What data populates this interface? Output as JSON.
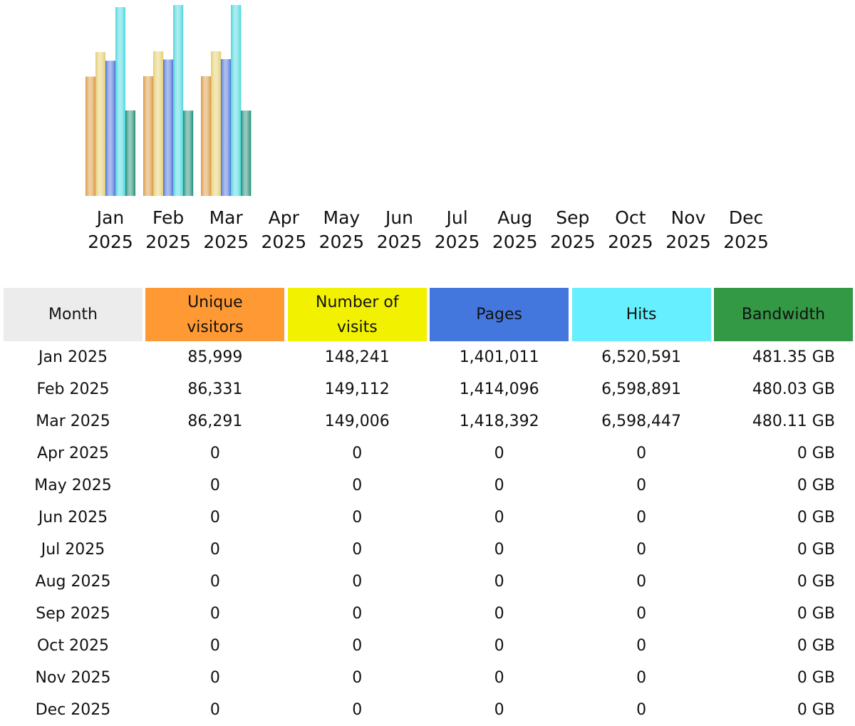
{
  "chart_data": {
    "type": "bar",
    "month_header": "Month",
    "categories": [
      "Jan 2025",
      "Feb 2025",
      "Mar 2025",
      "Apr 2025",
      "May 2025",
      "Jun 2025",
      "Jul 2025",
      "Aug 2025",
      "Sep 2025",
      "Oct 2025",
      "Nov 2025",
      "Dec 2025"
    ],
    "series": [
      {
        "name": "Unique visitors",
        "color": "#d9953a",
        "header_color": "#ff9933",
        "values": [
          85999,
          86331,
          86291,
          0,
          0,
          0,
          0,
          0,
          0,
          0,
          0,
          0
        ],
        "value_labels": [
          "85,999",
          "86,331",
          "86,291",
          "0",
          "0",
          "0",
          "0",
          "0",
          "0",
          "0",
          "0",
          "0"
        ]
      },
      {
        "name": "Number of visits",
        "color": "#e2cc6a",
        "header_color": "#f2f200",
        "values": [
          148241,
          149112,
          149006,
          0,
          0,
          0,
          0,
          0,
          0,
          0,
          0,
          0
        ],
        "value_labels": [
          "148,241",
          "149,112",
          "149,006",
          "0",
          "0",
          "0",
          "0",
          "0",
          "0",
          "0",
          "0",
          "0"
        ]
      },
      {
        "name": "Pages",
        "color": "#4a6fd8",
        "header_color": "#4477dd",
        "values": [
          1401011,
          1414096,
          1418392,
          0,
          0,
          0,
          0,
          0,
          0,
          0,
          0,
          0
        ],
        "value_labels": [
          "1,401,011",
          "1,414,096",
          "1,418,392",
          "0",
          "0",
          "0",
          "0",
          "0",
          "0",
          "0",
          "0",
          "0"
        ]
      },
      {
        "name": "Hits",
        "color": "#45d6de",
        "header_color": "#66f0ff",
        "values": [
          6520591,
          6598891,
          6598447,
          0,
          0,
          0,
          0,
          0,
          0,
          0,
          0,
          0
        ],
        "value_labels": [
          "6,520,591",
          "6,598,891",
          "6,598,447",
          "0",
          "0",
          "0",
          "0",
          "0",
          "0",
          "0",
          "0",
          "0"
        ]
      },
      {
        "name": "Bandwidth",
        "color": "#178a70",
        "header_color": "#339944",
        "values": [
          481.35,
          480.03,
          480.11,
          0,
          0,
          0,
          0,
          0,
          0,
          0,
          0,
          0
        ],
        "value_labels": [
          "481.35 GB",
          "480.03 GB",
          "480.11 GB",
          "0 GB",
          "0 GB",
          "0 GB",
          "0 GB",
          "0 GB",
          "0 GB",
          "0 GB",
          "0 GB",
          "0 GB"
        ]
      }
    ]
  }
}
